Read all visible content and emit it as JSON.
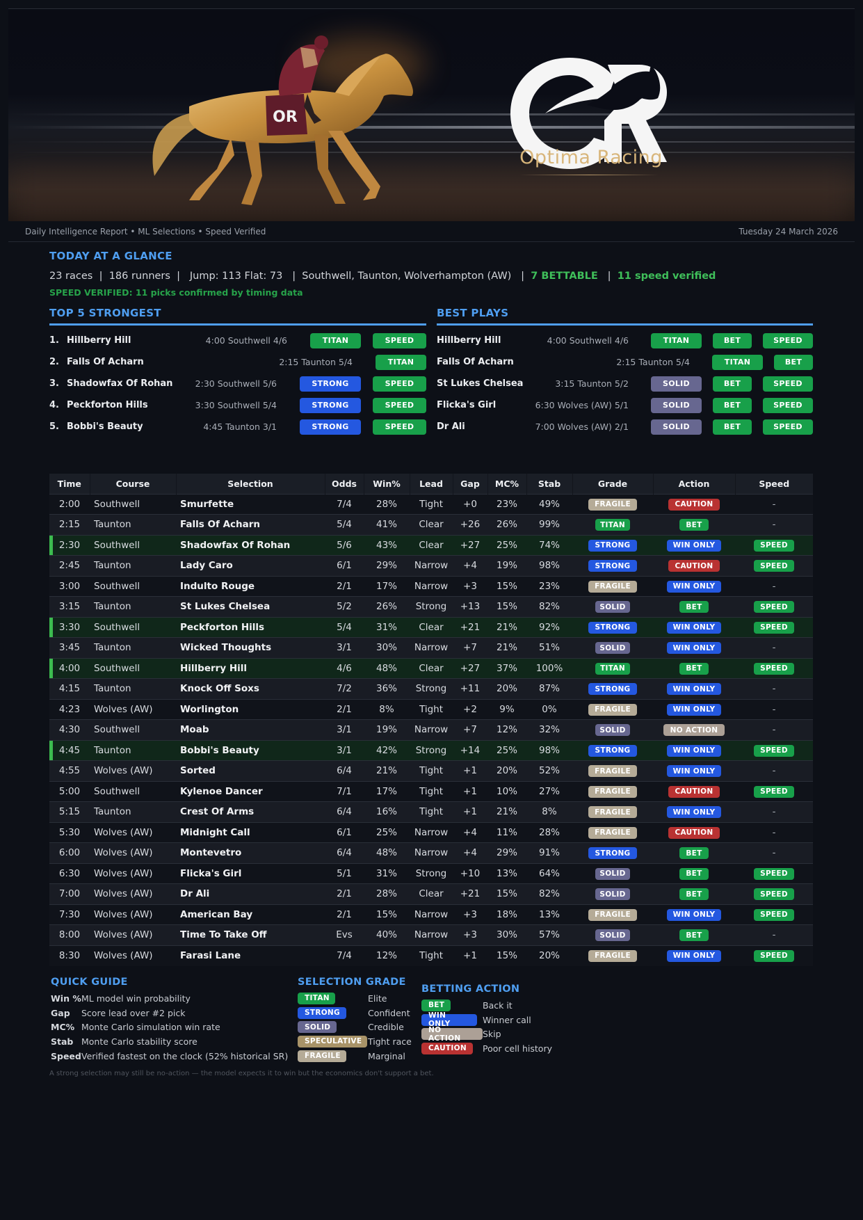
{
  "banner": {
    "brand_name": "Optima Racing",
    "logo_icon": "optima-racing-or-horse-logo",
    "saddle_cloth_mark": "OR"
  },
  "subheader": {
    "left": "Daily Intelligence Report • ML Selections • Speed Verified",
    "date": "Tuesday 24 March 2026"
  },
  "glance": {
    "title": "TODAY AT A GLANCE",
    "races": "23 races",
    "runners": "186 runners",
    "jump_flat": "Jump: 113 Flat: 73",
    "courses": "Southwell, Taunton, Wolverhampton (AW)",
    "bettable": "7 BETTABLE",
    "speed_verified": "11 speed verified",
    "sep": "|",
    "speed_line": "SPEED VERIFIED: 11 picks confirmed by timing data"
  },
  "top5": {
    "title": "TOP 5 STRONGEST",
    "items": [
      {
        "rank": "1.",
        "name": "Hillberry Hill",
        "meta": "4:00 Southwell  4/6",
        "grade": "TITAN",
        "speed": "SPEED"
      },
      {
        "rank": "2.",
        "name": "Falls Of Acharn",
        "meta": "2:15 Taunton  5/4",
        "grade": "TITAN",
        "speed": ""
      },
      {
        "rank": "3.",
        "name": "Shadowfax Of Rohan",
        "meta": "2:30 Southwell  5/6",
        "grade": "STRONG",
        "speed": "SPEED"
      },
      {
        "rank": "4.",
        "name": "Peckforton Hills",
        "meta": "3:30 Southwell  5/4",
        "grade": "STRONG",
        "speed": "SPEED"
      },
      {
        "rank": "5.",
        "name": "Bobbi's Beauty",
        "meta": "4:45 Taunton  3/1",
        "grade": "STRONG",
        "speed": "SPEED"
      }
    ]
  },
  "best_plays": {
    "title": "BEST PLAYS",
    "items": [
      {
        "name": "Hillberry Hill",
        "meta": "4:00 Southwell  4/6",
        "grade": "TITAN",
        "action": "BET",
        "speed": "SPEED"
      },
      {
        "name": "Falls Of Acharn",
        "meta": "2:15 Taunton  5/4",
        "grade": "TITAN",
        "action": "BET",
        "speed": ""
      },
      {
        "name": "St Lukes Chelsea",
        "meta": "3:15 Taunton  5/2",
        "grade": "SOLID",
        "action": "BET",
        "speed": "SPEED"
      },
      {
        "name": "Flicka's Girl",
        "meta": "6:30 Wolves (AW)  5/1",
        "grade": "SOLID",
        "action": "BET",
        "speed": "SPEED"
      },
      {
        "name": "Dr Ali",
        "meta": "7:00 Wolves (AW)  2/1",
        "grade": "SOLID",
        "action": "BET",
        "speed": "SPEED"
      }
    ]
  },
  "table": {
    "headers": [
      "Time",
      "Course",
      "Selection",
      "Odds",
      "Win%",
      "Lead",
      "Gap",
      "MC%",
      "Stab",
      "Grade",
      "Action",
      "Speed"
    ],
    "rows": [
      {
        "time": "2:00",
        "course": "Southwell",
        "selection": "Smurfette",
        "odds": "7/4",
        "win": "28%",
        "lead": "Tight",
        "gap": "+0",
        "mc": "23%",
        "stab": "49%",
        "grade": "FRAGILE",
        "action": "CAUTION",
        "speed": "-",
        "hl": false
      },
      {
        "time": "2:15",
        "course": "Taunton",
        "selection": "Falls Of Acharn",
        "odds": "5/4",
        "win": "41%",
        "lead": "Clear",
        "gap": "+26",
        "mc": "26%",
        "stab": "99%",
        "grade": "TITAN",
        "action": "BET",
        "speed": "-",
        "hl": false
      },
      {
        "time": "2:30",
        "course": "Southwell",
        "selection": "Shadowfax Of Rohan",
        "odds": "5/6",
        "win": "43%",
        "lead": "Clear",
        "gap": "+27",
        "mc": "25%",
        "stab": "74%",
        "grade": "STRONG",
        "action": "WIN ONLY",
        "speed": "SPEED",
        "hl": true
      },
      {
        "time": "2:45",
        "course": "Taunton",
        "selection": "Lady Caro",
        "odds": "6/1",
        "win": "29%",
        "lead": "Narrow",
        "gap": "+4",
        "mc": "19%",
        "stab": "98%",
        "grade": "STRONG",
        "action": "CAUTION",
        "speed": "SPEED",
        "hl": false
      },
      {
        "time": "3:00",
        "course": "Southwell",
        "selection": "Indulto Rouge",
        "odds": "2/1",
        "win": "17%",
        "lead": "Narrow",
        "gap": "+3",
        "mc": "15%",
        "stab": "23%",
        "grade": "FRAGILE",
        "action": "WIN ONLY",
        "speed": "-",
        "hl": false
      },
      {
        "time": "3:15",
        "course": "Taunton",
        "selection": "St Lukes Chelsea",
        "odds": "5/2",
        "win": "26%",
        "lead": "Strong",
        "gap": "+13",
        "mc": "15%",
        "stab": "82%",
        "grade": "SOLID",
        "action": "BET",
        "speed": "SPEED",
        "hl": false
      },
      {
        "time": "3:30",
        "course": "Southwell",
        "selection": "Peckforton Hills",
        "odds": "5/4",
        "win": "31%",
        "lead": "Clear",
        "gap": "+21",
        "mc": "21%",
        "stab": "92%",
        "grade": "STRONG",
        "action": "WIN ONLY",
        "speed": "SPEED",
        "hl": true
      },
      {
        "time": "3:45",
        "course": "Taunton",
        "selection": "Wicked Thoughts",
        "odds": "3/1",
        "win": "30%",
        "lead": "Narrow",
        "gap": "+7",
        "mc": "21%",
        "stab": "51%",
        "grade": "SOLID",
        "action": "WIN ONLY",
        "speed": "-",
        "hl": false
      },
      {
        "time": "4:00",
        "course": "Southwell",
        "selection": "Hillberry Hill",
        "odds": "4/6",
        "win": "48%",
        "lead": "Clear",
        "gap": "+27",
        "mc": "37%",
        "stab": "100%",
        "grade": "TITAN",
        "action": "BET",
        "speed": "SPEED",
        "hl": true
      },
      {
        "time": "4:15",
        "course": "Taunton",
        "selection": "Knock Off Soxs",
        "odds": "7/2",
        "win": "36%",
        "lead": "Strong",
        "gap": "+11",
        "mc": "20%",
        "stab": "87%",
        "grade": "STRONG",
        "action": "WIN ONLY",
        "speed": "-",
        "hl": false
      },
      {
        "time": "4:23",
        "course": "Wolves (AW)",
        "selection": "Worlington",
        "odds": "2/1",
        "win": "8%",
        "lead": "Tight",
        "gap": "+2",
        "mc": "9%",
        "stab": "0%",
        "grade": "FRAGILE",
        "action": "WIN ONLY",
        "speed": "-",
        "hl": false
      },
      {
        "time": "4:30",
        "course": "Southwell",
        "selection": "Moab",
        "odds": "3/1",
        "win": "19%",
        "lead": "Narrow",
        "gap": "+7",
        "mc": "12%",
        "stab": "32%",
        "grade": "SOLID",
        "action": "NO ACTION",
        "speed": "-",
        "hl": false
      },
      {
        "time": "4:45",
        "course": "Taunton",
        "selection": "Bobbi's Beauty",
        "odds": "3/1",
        "win": "42%",
        "lead": "Strong",
        "gap": "+14",
        "mc": "25%",
        "stab": "98%",
        "grade": "STRONG",
        "action": "WIN ONLY",
        "speed": "SPEED",
        "hl": true
      },
      {
        "time": "4:55",
        "course": "Wolves (AW)",
        "selection": "Sorted",
        "odds": "6/4",
        "win": "21%",
        "lead": "Tight",
        "gap": "+1",
        "mc": "20%",
        "stab": "52%",
        "grade": "FRAGILE",
        "action": "WIN ONLY",
        "speed": "-",
        "hl": false
      },
      {
        "time": "5:00",
        "course": "Southwell",
        "selection": "Kylenoe Dancer",
        "odds": "7/1",
        "win": "17%",
        "lead": "Tight",
        "gap": "+1",
        "mc": "10%",
        "stab": "27%",
        "grade": "FRAGILE",
        "action": "CAUTION",
        "speed": "SPEED",
        "hl": false
      },
      {
        "time": "5:15",
        "course": "Taunton",
        "selection": "Crest Of Arms",
        "odds": "6/4",
        "win": "16%",
        "lead": "Tight",
        "gap": "+1",
        "mc": "21%",
        "stab": "8%",
        "grade": "FRAGILE",
        "action": "WIN ONLY",
        "speed": "-",
        "hl": false
      },
      {
        "time": "5:30",
        "course": "Wolves (AW)",
        "selection": "Midnight Call",
        "odds": "6/1",
        "win": "25%",
        "lead": "Narrow",
        "gap": "+4",
        "mc": "11%",
        "stab": "28%",
        "grade": "FRAGILE",
        "action": "CAUTION",
        "speed": "-",
        "hl": false
      },
      {
        "time": "6:00",
        "course": "Wolves (AW)",
        "selection": "Montevetro",
        "odds": "6/4",
        "win": "48%",
        "lead": "Narrow",
        "gap": "+4",
        "mc": "29%",
        "stab": "91%",
        "grade": "STRONG",
        "action": "BET",
        "speed": "-",
        "hl": false
      },
      {
        "time": "6:30",
        "course": "Wolves (AW)",
        "selection": "Flicka's Girl",
        "odds": "5/1",
        "win": "31%",
        "lead": "Strong",
        "gap": "+10",
        "mc": "13%",
        "stab": "64%",
        "grade": "SOLID",
        "action": "BET",
        "speed": "SPEED",
        "hl": false
      },
      {
        "time": "7:00",
        "course": "Wolves (AW)",
        "selection": "Dr Ali",
        "odds": "2/1",
        "win": "28%",
        "lead": "Clear",
        "gap": "+21",
        "mc": "15%",
        "stab": "82%",
        "grade": "SOLID",
        "action": "BET",
        "speed": "SPEED",
        "hl": false
      },
      {
        "time": "7:30",
        "course": "Wolves (AW)",
        "selection": "American Bay",
        "odds": "2/1",
        "win": "15%",
        "lead": "Narrow",
        "gap": "+3",
        "mc": "18%",
        "stab": "13%",
        "grade": "FRAGILE",
        "action": "WIN ONLY",
        "speed": "SPEED",
        "hl": false
      },
      {
        "time": "8:00",
        "course": "Wolves (AW)",
        "selection": "Time To Take Off",
        "odds": "Evs",
        "win": "40%",
        "lead": "Narrow",
        "gap": "+3",
        "mc": "30%",
        "stab": "57%",
        "grade": "SOLID",
        "action": "BET",
        "speed": "-",
        "hl": false
      },
      {
        "time": "8:30",
        "course": "Wolves (AW)",
        "selection": "Farasi Lane",
        "odds": "7/4",
        "win": "12%",
        "lead": "Tight",
        "gap": "+1",
        "mc": "15%",
        "stab": "20%",
        "grade": "FRAGILE",
        "action": "WIN ONLY",
        "speed": "SPEED",
        "hl": false
      }
    ]
  },
  "quick_guide": {
    "title": "QUICK GUIDE",
    "items": [
      {
        "key": "Win %",
        "desc": "ML model win probability"
      },
      {
        "key": "Gap",
        "desc": "Score lead over #2 pick"
      },
      {
        "key": "MC%",
        "desc": "Monte Carlo simulation win rate"
      },
      {
        "key": "Stab",
        "desc": "Monte Carlo stability score"
      },
      {
        "key": "Speed",
        "desc": "Verified fastest on the clock (52% historical SR)"
      }
    ]
  },
  "selection_grade": {
    "title": "SELECTION GRADE",
    "items": [
      {
        "label": "TITAN",
        "desc": "Elite"
      },
      {
        "label": "STRONG",
        "desc": "Confident"
      },
      {
        "label": "SOLID",
        "desc": "Credible"
      },
      {
        "label": "SPECULATIVE",
        "desc": "Tight race"
      },
      {
        "label": "FRAGILE",
        "desc": "Marginal"
      }
    ]
  },
  "betting_action": {
    "title": "BETTING ACTION",
    "items": [
      {
        "label": "BET",
        "desc": "Back it"
      },
      {
        "label": "WIN ONLY",
        "desc": "Winner call"
      },
      {
        "label": "NO ACTION",
        "desc": "Skip"
      },
      {
        "label": "CAUTION",
        "desc": "Poor cell history"
      }
    ]
  },
  "footnote": "A strong selection may still be no-action — the model expects it to win but the economics don't support a bet.",
  "colors": {
    "accent_blue": "#4f9ef0",
    "green": "#18a04a",
    "blue": "#2458e0",
    "solid": "#676790",
    "speculative": "#a89368",
    "fragile": "#b5ab97",
    "no_action": "#aca096",
    "caution": "#b93232",
    "highlight_row": "#10271a",
    "highlight_bar": "#3cbc4f",
    "background": "#0d1017"
  }
}
